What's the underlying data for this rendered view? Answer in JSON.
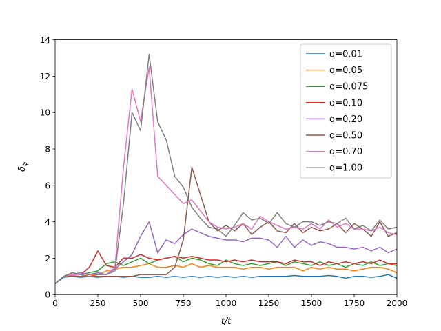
{
  "chart_data": {
    "type": "line",
    "title": "",
    "xlabel": "t/t_bin",
    "xlabel_main": "t/t",
    "xlabel_sub": "bin",
    "ylabel": "δ_φ",
    "ylabel_main": "δ",
    "ylabel_sub": "φ",
    "xlim": [
      0,
      2000
    ],
    "ylim": [
      0,
      14
    ],
    "xticks": [
      0,
      250,
      500,
      750,
      1000,
      1250,
      1500,
      1750,
      2000
    ],
    "yticks": [
      0,
      2,
      4,
      6,
      8,
      10,
      12,
      14
    ],
    "grid": false,
    "legend_position": "top-right",
    "x": [
      0,
      50,
      100,
      150,
      200,
      250,
      300,
      350,
      400,
      450,
      500,
      550,
      600,
      650,
      700,
      750,
      800,
      850,
      900,
      950,
      1000,
      1050,
      1100,
      1150,
      1200,
      1250,
      1300,
      1350,
      1400,
      1450,
      1500,
      1550,
      1600,
      1650,
      1700,
      1750,
      1800,
      1850,
      1900,
      1950,
      2000
    ],
    "series": [
      {
        "name": "q=0.01",
        "color": "#1f77b4",
        "values": [
          0.6,
          0.95,
          1.0,
          0.95,
          1.0,
          0.95,
          1.0,
          1.0,
          0.95,
          1.0,
          0.95,
          0.95,
          1.0,
          0.95,
          1.0,
          0.95,
          1.0,
          0.95,
          1.0,
          0.95,
          1.0,
          0.95,
          1.0,
          0.95,
          1.0,
          1.0,
          1.0,
          1.0,
          1.05,
          1.0,
          1.0,
          1.0,
          1.05,
          1.0,
          0.9,
          1.0,
          1.0,
          0.95,
          1.0,
          1.1,
          0.9
        ]
      },
      {
        "name": "q=0.05",
        "color": "#ff7f0e",
        "values": [
          0.6,
          1.0,
          1.05,
          1.0,
          1.1,
          1.1,
          1.3,
          1.4,
          1.5,
          1.5,
          1.6,
          1.7,
          1.5,
          1.5,
          1.6,
          1.5,
          1.7,
          1.5,
          1.6,
          1.5,
          1.5,
          1.5,
          1.4,
          1.5,
          1.5,
          1.4,
          1.5,
          1.5,
          1.5,
          1.3,
          1.5,
          1.4,
          1.5,
          1.4,
          1.4,
          1.3,
          1.4,
          1.5,
          1.5,
          1.4,
          1.2
        ]
      },
      {
        "name": "q=0.075",
        "color": "#2ca02c",
        "values": [
          0.6,
          1.0,
          1.2,
          1.1,
          1.2,
          1.3,
          1.7,
          1.8,
          1.6,
          1.8,
          2.0,
          1.7,
          1.9,
          2.0,
          2.1,
          1.8,
          2.0,
          1.9,
          1.7,
          1.6,
          1.9,
          1.7,
          1.6,
          1.7,
          1.6,
          1.7,
          1.8,
          1.6,
          1.8,
          1.7,
          1.6,
          1.8,
          1.6,
          1.7,
          1.5,
          1.7,
          1.6,
          1.8,
          1.6,
          1.7,
          1.6
        ]
      },
      {
        "name": "q=0.10",
        "color": "#d62728",
        "values": [
          0.6,
          1.0,
          1.2,
          1.1,
          1.5,
          2.4,
          1.6,
          1.5,
          2.0,
          2.0,
          2.2,
          2.0,
          1.9,
          2.0,
          2.1,
          2.0,
          2.1,
          2.0,
          1.9,
          1.9,
          1.8,
          1.9,
          1.8,
          1.9,
          1.8,
          1.8,
          1.8,
          1.7,
          1.9,
          1.8,
          1.8,
          1.6,
          1.8,
          1.7,
          1.8,
          1.7,
          1.8,
          1.7,
          1.9,
          1.7,
          1.7
        ]
      },
      {
        "name": "q=0.20",
        "color": "#9467bd",
        "values": [
          0.6,
          1.0,
          1.1,
          1.2,
          1.1,
          1.2,
          1.1,
          1.4,
          1.8,
          2.2,
          3.2,
          4.0,
          2.3,
          3.0,
          2.8,
          3.3,
          3.6,
          3.4,
          3.2,
          3.1,
          3.0,
          3.0,
          2.9,
          3.1,
          3.1,
          3.0,
          2.6,
          3.2,
          2.6,
          3.0,
          2.7,
          2.9,
          2.8,
          2.6,
          2.6,
          2.5,
          2.6,
          2.4,
          2.6,
          2.3,
          2.5
        ]
      },
      {
        "name": "q=0.50",
        "color": "#8c564b",
        "values": [
          0.6,
          1.0,
          1.0,
          1.0,
          1.0,
          1.0,
          1.0,
          1.0,
          1.0,
          1.0,
          1.1,
          1.1,
          1.1,
          1.1,
          1.5,
          3.0,
          7.0,
          5.5,
          4.0,
          3.5,
          3.8,
          3.5,
          3.9,
          3.3,
          3.7,
          4.0,
          3.5,
          3.4,
          3.9,
          3.4,
          3.7,
          3.5,
          3.6,
          3.9,
          3.4,
          3.9,
          3.6,
          3.2,
          4.0,
          3.2,
          3.4
        ]
      },
      {
        "name": "q=0.70",
        "color": "#e377c2",
        "values": [
          0.6,
          1.0,
          1.1,
          1.1,
          1.0,
          1.1,
          1.1,
          1.5,
          7.0,
          11.3,
          9.5,
          12.5,
          6.5,
          6.0,
          5.5,
          5.0,
          5.2,
          4.6,
          4.0,
          3.7,
          3.6,
          3.7,
          3.9,
          3.6,
          4.3,
          4.0,
          3.8,
          3.6,
          3.7,
          3.6,
          3.9,
          3.6,
          4.1,
          3.7,
          3.9,
          3.6,
          3.6,
          3.5,
          3.7,
          3.4,
          3.3
        ]
      },
      {
        "name": "q=1.00",
        "color": "#7f7f7f",
        "values": [
          0.6,
          1.0,
          1.2,
          1.1,
          1.0,
          1.1,
          1.1,
          1.3,
          5.0,
          10.0,
          9.0,
          13.2,
          9.5,
          8.5,
          6.5,
          5.9,
          4.8,
          4.2,
          3.7,
          3.6,
          3.2,
          3.8,
          4.5,
          4.1,
          4.2,
          3.9,
          4.5,
          3.9,
          3.7,
          4.0,
          4.0,
          3.8,
          4.0,
          3.9,
          4.2,
          3.6,
          3.8,
          3.5,
          4.1,
          3.6,
          3.7
        ]
      }
    ]
  }
}
